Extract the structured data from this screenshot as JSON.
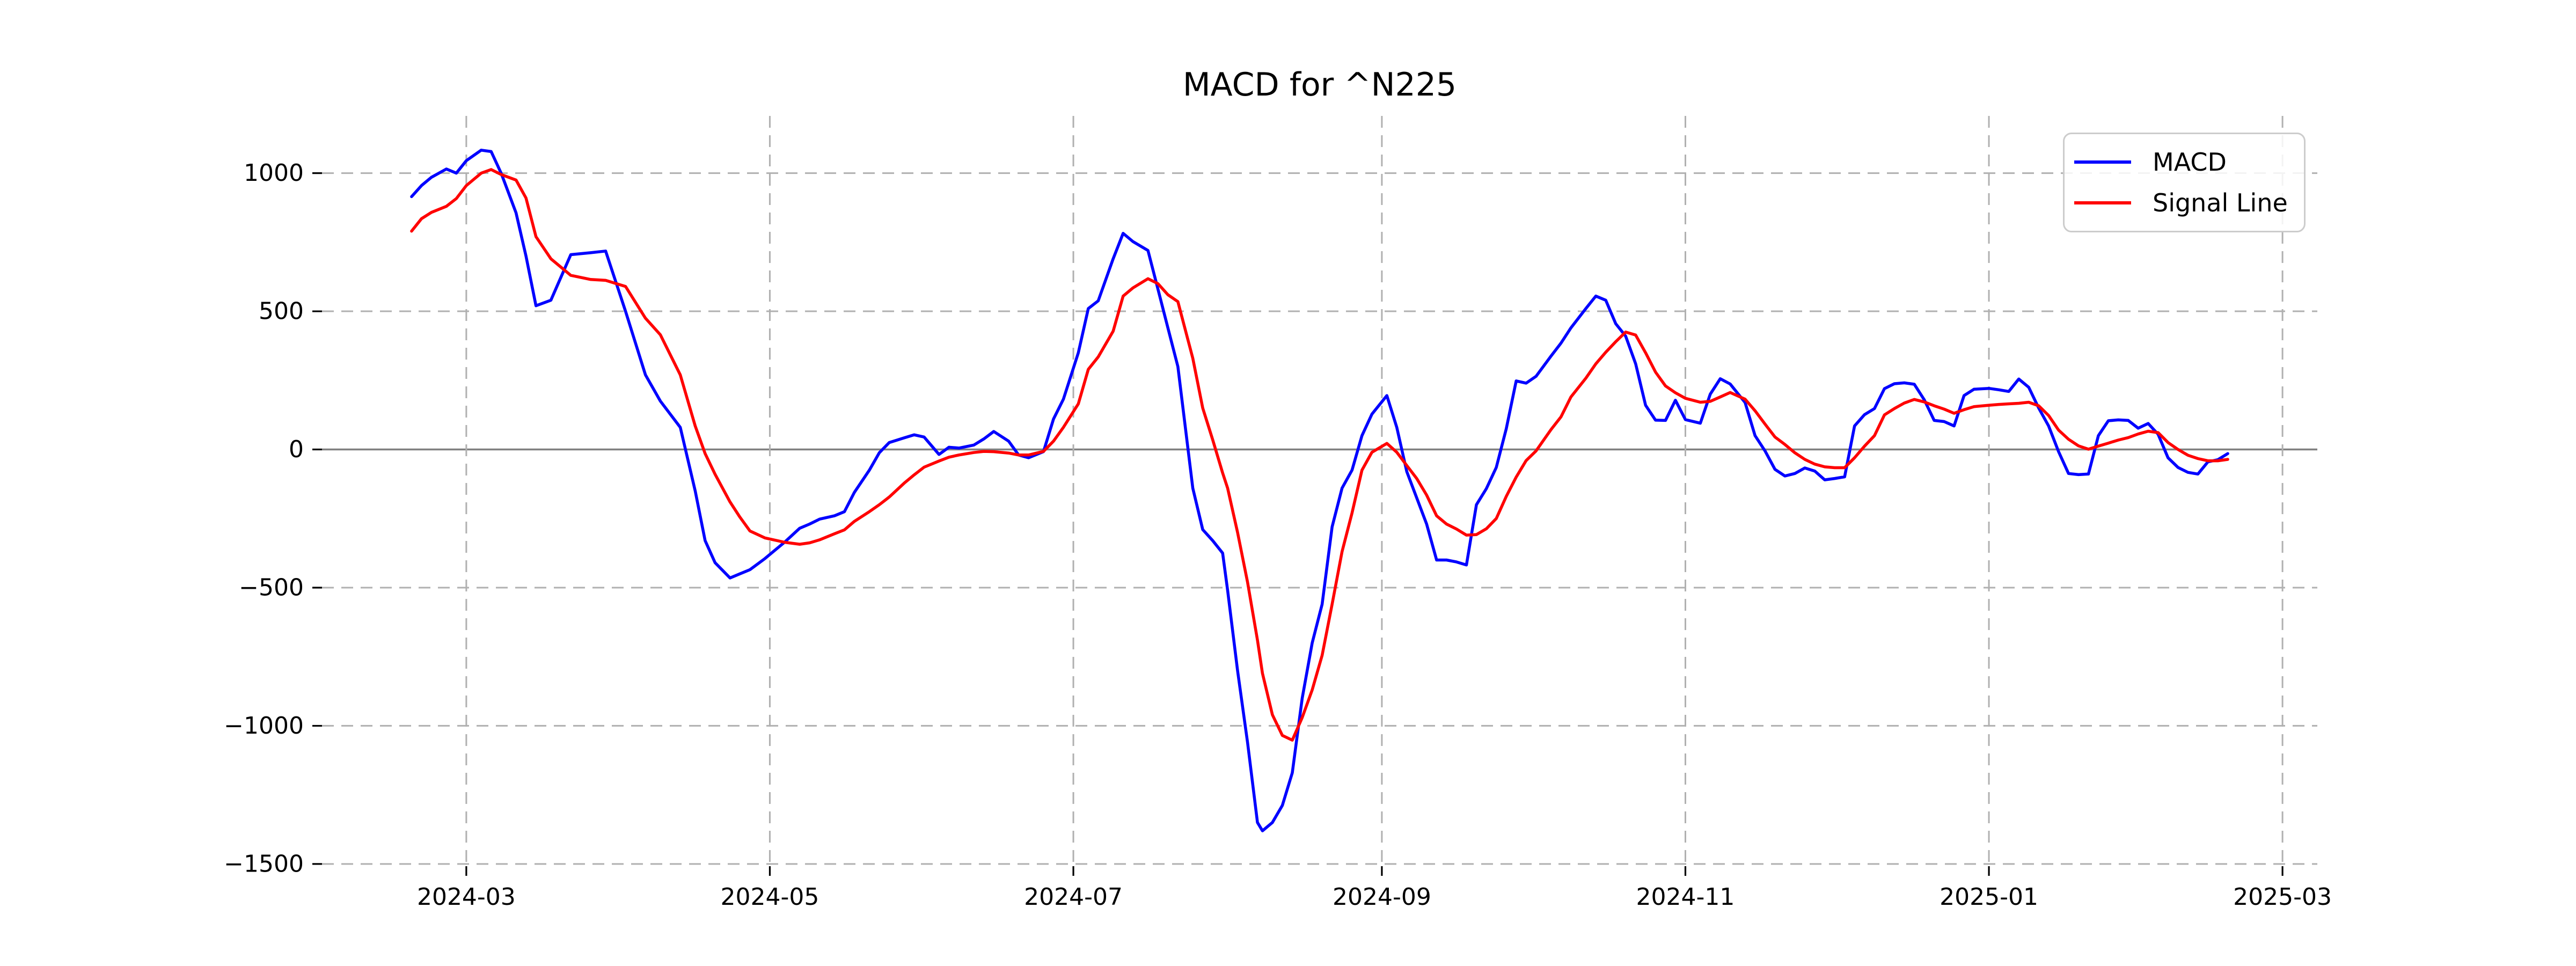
{
  "title": "MACD for ^N225",
  "legend": {
    "items": [
      {
        "label": "MACD",
        "color": "#0000ff"
      },
      {
        "label": "Signal Line",
        "color": "#ff0000"
      }
    ]
  },
  "colors": {
    "macd_line": "#0000ff",
    "signal_line": "#ff0000",
    "gridline": "#b0b0b0",
    "zero_line": "#808080",
    "text": "#000000",
    "legend_border": "#cccccc",
    "background": "#ffffff"
  },
  "chart_data": {
    "type": "line",
    "title": "MACD for ^N225",
    "xlabel": "",
    "ylabel": "",
    "grid": true,
    "legend_position": "upper right",
    "zero_line": true,
    "xlim": [
      "2024-02-01",
      "2025-03-08"
    ],
    "ylim": [
      -1508,
      1207
    ],
    "x_tick_dates": [
      "2024-03-01",
      "2024-05-01",
      "2024-07-01",
      "2024-09-01",
      "2024-11-01",
      "2025-01-01",
      "2025-03-01"
    ],
    "x_tick_labels": [
      "2024-03",
      "2024-05",
      "2024-07",
      "2024-09",
      "2024-11",
      "2025-01",
      "2025-03"
    ],
    "y_ticks": [
      1000,
      500,
      0,
      -500,
      -1000,
      -1500
    ],
    "y_tick_labels": [
      "1000",
      "500",
      "0",
      "−500",
      "−1000",
      "−1500"
    ],
    "x": [
      "2024-02-19",
      "2024-02-21",
      "2024-02-23",
      "2024-02-26",
      "2024-02-28",
      "2024-03-01",
      "2024-03-04",
      "2024-03-06",
      "2024-03-08",
      "2024-03-11",
      "2024-03-13",
      "2024-03-15",
      "2024-03-18",
      "2024-03-22",
      "2024-03-26",
      "2024-03-29",
      "2024-04-02",
      "2024-04-06",
      "2024-04-09",
      "2024-04-13",
      "2024-04-16",
      "2024-04-18",
      "2024-04-20",
      "2024-04-23",
      "2024-04-25",
      "2024-04-27",
      "2024-04-30",
      "2024-05-04",
      "2024-05-07",
      "2024-05-09",
      "2024-05-11",
      "2024-05-14",
      "2024-05-16",
      "2024-05-18",
      "2024-05-21",
      "2024-05-23",
      "2024-05-25",
      "2024-05-28",
      "2024-05-30",
      "2024-06-01",
      "2024-06-04",
      "2024-06-06",
      "2024-06-08",
      "2024-06-11",
      "2024-06-13",
      "2024-06-15",
      "2024-06-18",
      "2024-06-20",
      "2024-06-22",
      "2024-06-25",
      "2024-06-27",
      "2024-06-29",
      "2024-07-02",
      "2024-07-04",
      "2024-07-06",
      "2024-07-09",
      "2024-07-11",
      "2024-07-13",
      "2024-07-16",
      "2024-07-18",
      "2024-07-20",
      "2024-07-22",
      "2024-07-25",
      "2024-07-27",
      "2024-07-29",
      "2024-07-31",
      "2024-08-01",
      "2024-08-03",
      "2024-08-05",
      "2024-08-07",
      "2024-08-08",
      "2024-08-10",
      "2024-08-12",
      "2024-08-14",
      "2024-08-16",
      "2024-08-18",
      "2024-08-20",
      "2024-08-22",
      "2024-08-24",
      "2024-08-26",
      "2024-08-28",
      "2024-08-30",
      "2024-09-02",
      "2024-09-04",
      "2024-09-06",
      "2024-09-08",
      "2024-09-10",
      "2024-09-12",
      "2024-09-14",
      "2024-09-16",
      "2024-09-18",
      "2024-09-20",
      "2024-09-22",
      "2024-09-24",
      "2024-09-26",
      "2024-09-28",
      "2024-09-30",
      "2024-10-02",
      "2024-10-05",
      "2024-10-07",
      "2024-10-09",
      "2024-10-12",
      "2024-10-14",
      "2024-10-16",
      "2024-10-18",
      "2024-10-20",
      "2024-10-22",
      "2024-10-24",
      "2024-10-26",
      "2024-10-28",
      "2024-10-30",
      "2024-11-01",
      "2024-11-04",
      "2024-11-06",
      "2024-11-08",
      "2024-11-10",
      "2024-11-13",
      "2024-11-15",
      "2024-11-17",
      "2024-11-19",
      "2024-11-21",
      "2024-11-23",
      "2024-11-25",
      "2024-11-27",
      "2024-11-29",
      "2024-12-01",
      "2024-12-03",
      "2024-12-05",
      "2024-12-07",
      "2024-12-09",
      "2024-12-11",
      "2024-12-13",
      "2024-12-15",
      "2024-12-17",
      "2024-12-19",
      "2024-12-21",
      "2024-12-23",
      "2024-12-25",
      "2024-12-27",
      "2024-12-29",
      "2025-01-01",
      "2025-01-03",
      "2025-01-05",
      "2025-01-07",
      "2025-01-09",
      "2025-01-11",
      "2025-01-13",
      "2025-01-15",
      "2025-01-17",
      "2025-01-19",
      "2025-01-21",
      "2025-01-23",
      "2025-01-25",
      "2025-01-27",
      "2025-01-29",
      "2025-01-31",
      "2025-02-02",
      "2025-02-04",
      "2025-02-06",
      "2025-02-08",
      "2025-02-10",
      "2025-02-12",
      "2025-02-14",
      "2025-02-16",
      "2025-02-18"
    ],
    "series": [
      {
        "name": "MACD",
        "color": "#0000ff",
        "values": [
          915,
          955,
          985,
          1015,
          1000,
          1045,
          1083,
          1078,
          1000,
          856,
          700,
          520,
          540,
          705,
          712,
          718,
          500,
          270,
          175,
          80,
          -150,
          -330,
          -410,
          -465,
          -450,
          -435,
          -395,
          -335,
          -285,
          -270,
          -252,
          -240,
          -225,
          -155,
          -75,
          -12,
          25,
          42,
          53,
          45,
          -18,
          8,
          5,
          16,
          38,
          65,
          30,
          -20,
          -30,
          -8,
          110,
          182,
          350,
          510,
          538,
          690,
          782,
          752,
          720,
          580,
          440,
          300,
          -140,
          -290,
          -330,
          -375,
          -510,
          -800,
          -1060,
          -1350,
          -1380,
          -1350,
          -1288,
          -1170,
          -900,
          -700,
          -560,
          -280,
          -140,
          -75,
          50,
          128,
          195,
          80,
          -80,
          -175,
          -270,
          -400,
          -400,
          -407,
          -418,
          -200,
          -142,
          -65,
          75,
          248,
          240,
          265,
          338,
          385,
          440,
          510,
          555,
          540,
          455,
          410,
          310,
          160,
          106,
          105,
          178,
          108,
          95,
          200,
          256,
          237,
          170,
          50,
          -5,
          -72,
          -96,
          -87,
          -67,
          -78,
          -110,
          -105,
          -99,
          85,
          126,
          148,
          220,
          238,
          241,
          236,
          180,
          105,
          101,
          85,
          195,
          218,
          221,
          216,
          210,
          255,
          225,
          150,
          85,
          -8,
          -87,
          -91,
          -89,
          50,
          104,
          107,
          105,
          77,
          94,
          55,
          -30,
          -65,
          -83,
          -89,
          -45,
          -37,
          -15
        ]
      },
      {
        "name": "Signal Line",
        "color": "#ff0000",
        "values": [
          790,
          835,
          858,
          880,
          908,
          955,
          1000,
          1013,
          995,
          975,
          910,
          770,
          690,
          630,
          615,
          612,
          590,
          475,
          415,
          270,
          85,
          -15,
          -90,
          -190,
          -245,
          -295,
          -320,
          -336,
          -343,
          -338,
          -327,
          -305,
          -291,
          -260,
          -225,
          -200,
          -172,
          -122,
          -92,
          -64,
          -42,
          -28,
          -20,
          -11,
          -7,
          -8,
          -13,
          -20,
          -20,
          -7,
          30,
          80,
          165,
          290,
          335,
          428,
          555,
          585,
          618,
          600,
          560,
          535,
          330,
          150,
          35,
          -85,
          -140,
          -300,
          -480,
          -690,
          -810,
          -960,
          -1035,
          -1052,
          -970,
          -870,
          -745,
          -560,
          -370,
          -230,
          -75,
          -10,
          22,
          -10,
          -58,
          -105,
          -165,
          -240,
          -270,
          -288,
          -310,
          -308,
          -287,
          -250,
          -170,
          -100,
          -40,
          -5,
          72,
          118,
          190,
          258,
          310,
          352,
          390,
          425,
          414,
          350,
          280,
          230,
          205,
          185,
          171,
          174,
          190,
          206,
          182,
          140,
          92,
          45,
          18,
          -12,
          -36,
          -53,
          -63,
          -66,
          -66,
          -30,
          12,
          50,
          125,
          148,
          168,
          181,
          172,
          158,
          146,
          131,
          144,
          155,
          160,
          163,
          165,
          167,
          171,
          158,
          123,
          70,
          37,
          13,
          1,
          12,
          23,
          34,
          43,
          56,
          66,
          61,
          25,
          0,
          -21,
          -33,
          -41,
          -41,
          -36
        ]
      }
    ]
  }
}
